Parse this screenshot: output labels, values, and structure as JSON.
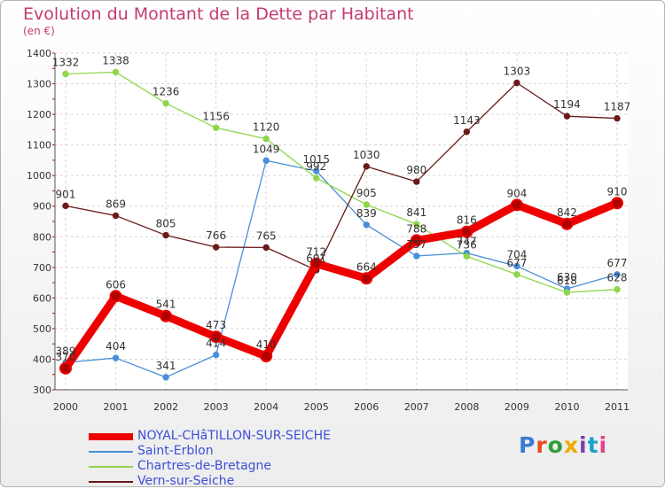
{
  "title": "Evolution du Montant de la Dette par Habitant",
  "unit": "(en €)",
  "logo": {
    "text": "Proxiti",
    "colors": [
      "#3a7bd5",
      "#e94e1b",
      "#2e9e3a",
      "#f2a900",
      "#7b3fb0",
      "#1aa3c8",
      "#e83e8c"
    ]
  },
  "chart_data": {
    "type": "line",
    "x": [
      "2000",
      "2001",
      "2002",
      "2003",
      "2004",
      "2005",
      "2006",
      "2007",
      "2008",
      "2009",
      "2010",
      "2011"
    ],
    "ylim": [
      300,
      1400
    ],
    "yticks": [
      300,
      400,
      500,
      600,
      700,
      800,
      900,
      1000,
      1100,
      1200,
      1300,
      1400
    ],
    "grid": true,
    "legend_position": "bottom-left",
    "series": [
      {
        "name": "NOYAL-CHâTILLON-SUR-SEICHE",
        "color": "#ee0000",
        "values": [
          370,
          606,
          541,
          473,
          410,
          712,
          664,
          788,
          816,
          904,
          842,
          910
        ]
      },
      {
        "name": "Saint-Erblon",
        "color": "#4a8fd8",
        "values": [
          389,
          404,
          341,
          414,
          1049,
          1015,
          839,
          737,
          747,
          704,
          630,
          677
        ]
      },
      {
        "name": "Chartres-de-Bretagne",
        "color": "#8fd64a",
        "values": [
          1332,
          1338,
          1236,
          1156,
          1120,
          992,
          905,
          841,
          736,
          677,
          618,
          628
        ]
      },
      {
        "name": "Vern-sur-Seiche",
        "color": "#6b1a1a",
        "values": [
          901,
          869,
          805,
          766,
          765,
          691,
          1030,
          980,
          1143,
          1303,
          1194,
          1187
        ]
      }
    ],
    "data_labels": [
      [
        "370",
        "606",
        "541",
        "473",
        "410",
        "712",
        "664",
        "788",
        "816",
        "904",
        "842",
        "910"
      ],
      [
        "389",
        "404",
        "341",
        "414",
        "1049",
        "1015",
        "839",
        "737",
        "747",
        "704",
        "630",
        "677"
      ],
      [
        "1332",
        "1338",
        "1236",
        "1156",
        "1120",
        "992",
        "905",
        "841",
        "736",
        "677",
        "618",
        "628"
      ],
      [
        "901",
        "869",
        "805",
        "766",
        "765",
        "691",
        "1030",
        "980",
        "1143",
        "1303",
        "1194",
        "1187"
      ]
    ]
  }
}
